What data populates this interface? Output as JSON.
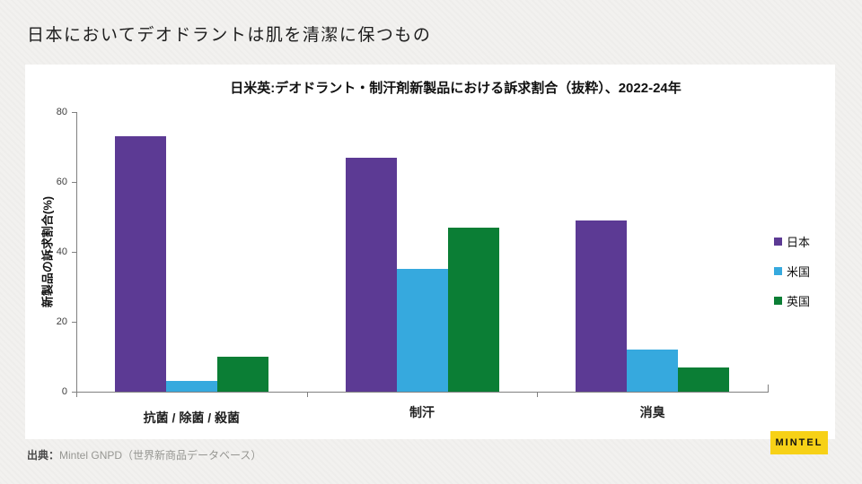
{
  "page": {
    "title": "日本においてデオドラントは肌を清潔に保つもの",
    "source_prefix": "出典：",
    "source_text": "Mintel GNPD（世界新商品データベース）",
    "logo_text": "MINTEL"
  },
  "colors": {
    "japan": "#5C3A94",
    "usa": "#36A9DE",
    "uk": "#0B7E35",
    "axis": "#808080",
    "logo_bg": "#F7D117",
    "title_text": "#1D1D1D"
  },
  "chart_data": {
    "type": "bar",
    "title": "日米英:デオドラント・制汗剤新製品における訴求割合（抜粋）、2022-24年",
    "xlabel": "",
    "ylabel": "新製品の訴求割合(%)",
    "ylim": [
      0,
      80
    ],
    "yticks": [
      0,
      20,
      40,
      60,
      80
    ],
    "grid": false,
    "legend_position": "right",
    "categories": [
      "抗菌 / 除菌 / 殺菌",
      "制汗",
      "消臭"
    ],
    "series": [
      {
        "name": "日本",
        "color": "#5C3A94",
        "values": [
          73,
          67,
          49
        ]
      },
      {
        "name": "米国",
        "color": "#36A9DE",
        "values": [
          3,
          35,
          12
        ]
      },
      {
        "name": "英国",
        "color": "#0B7E35",
        "values": [
          10,
          47,
          7
        ]
      }
    ]
  }
}
